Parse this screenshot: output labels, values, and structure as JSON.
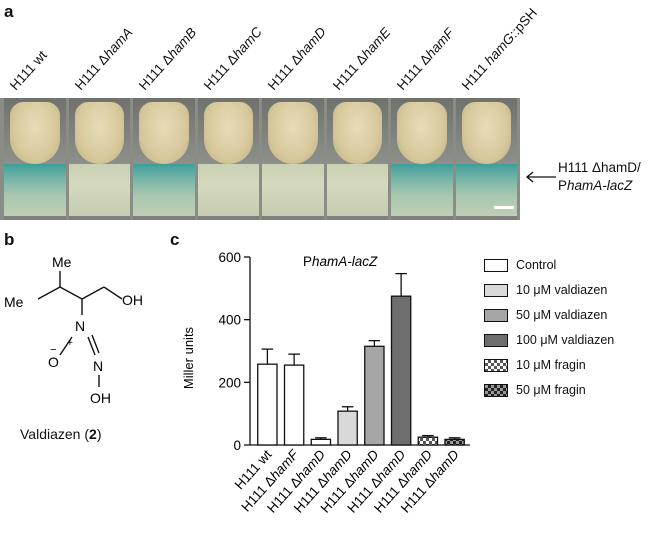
{
  "panels": {
    "a": "a",
    "b": "b",
    "c": "c"
  },
  "panel_a": {
    "strains": [
      {
        "prefix": "H111 ",
        "gene": "wt",
        "delta": false,
        "italic": false
      },
      {
        "prefix": "H111 ",
        "gene": "hamA",
        "delta": true,
        "italic": true
      },
      {
        "prefix": "H111 ",
        "gene": "hamB",
        "delta": true,
        "italic": true
      },
      {
        "prefix": "H111 ",
        "gene": "hamC",
        "delta": true,
        "italic": true
      },
      {
        "prefix": "H111 ",
        "gene": "hamD",
        "delta": true,
        "italic": true
      },
      {
        "prefix": "H111 ",
        "gene": "hamE",
        "delta": true,
        "italic": true
      },
      {
        "prefix": "H111 ",
        "gene": "hamF",
        "delta": true,
        "italic": true
      },
      {
        "prefix": "H111 ",
        "gene": "hamG",
        "delta": false,
        "italic": true,
        "suffix": "::pSH"
      }
    ],
    "band_blue": [
      true,
      false,
      true,
      false,
      false,
      false,
      true,
      true
    ],
    "annotation_line1": "H111 ΔhamD/",
    "annotation_line2_prefix": "P",
    "annotation_line2_italic": "hamA-lacZ"
  },
  "panel_b": {
    "labels": {
      "me1": "Me",
      "me2": "Me",
      "oh1": "OH",
      "oh2": "OH",
      "n1": "N",
      "n2": "N",
      "o": "O"
    },
    "caption_name": "Valdiazen (",
    "caption_num": "2",
    "caption_end": ")"
  },
  "chart_data": {
    "type": "bar",
    "title_prefix": "P",
    "title_italic": "hamA-lacZ",
    "ylabel": "Miller units",
    "ylim": [
      0,
      600
    ],
    "yticks": [
      0,
      200,
      400,
      600
    ],
    "categories": [
      {
        "prefix": "H111 ",
        "gene": "wt",
        "delta": false
      },
      {
        "prefix": "H111 ",
        "gene": "hamF",
        "delta": true
      },
      {
        "prefix": "H111 ",
        "gene": "hamD",
        "delta": true
      },
      {
        "prefix": "H111 ",
        "gene": "hamD",
        "delta": true
      },
      {
        "prefix": "H111 ",
        "gene": "hamD",
        "delta": true
      },
      {
        "prefix": "H111 ",
        "gene": "hamD",
        "delta": true
      },
      {
        "prefix": "H111 ",
        "gene": "hamD",
        "delta": true
      },
      {
        "prefix": "H111 ",
        "gene": "hamD",
        "delta": true
      }
    ],
    "values": [
      258,
      255,
      18,
      108,
      315,
      475,
      25,
      18
    ],
    "errors": [
      48,
      35,
      5,
      14,
      18,
      72,
      5,
      5
    ],
    "bar_treatment": [
      0,
      0,
      0,
      1,
      2,
      3,
      4,
      5
    ],
    "legend": [
      {
        "label": "Control",
        "fill": "#ffffff",
        "pattern": "none"
      },
      {
        "label": "10 μM valdiazen",
        "fill": "#d9d9d9",
        "pattern": "none"
      },
      {
        "label": "50 μM valdiazen",
        "fill": "#a6a6a6",
        "pattern": "none"
      },
      {
        "label": "100 μM valdiazen",
        "fill": "#6e6e6e",
        "pattern": "none"
      },
      {
        "label": "10 μM fragin",
        "fill": "#ffffff",
        "pattern": "check-light"
      },
      {
        "label": "50 μM fragin",
        "fill": "#ffffff",
        "pattern": "check-dark"
      }
    ],
    "legend_placement": "right"
  }
}
